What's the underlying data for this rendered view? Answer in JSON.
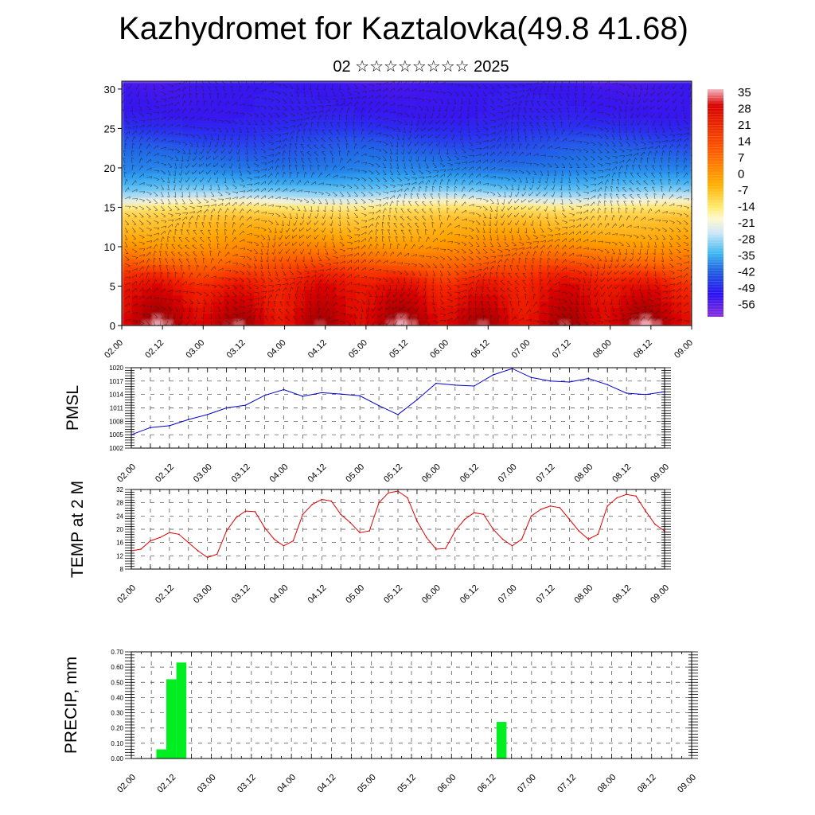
{
  "title": "Kazhydromet for Kaztalovka(49.8 41.68)",
  "subtitle": "02 ☆☆☆☆☆☆☆☆ 2025",
  "time_ticks": [
    "02.00",
    "02.12",
    "03.00",
    "03.12",
    "04.00",
    "04.12",
    "05.00",
    "05.12",
    "06.00",
    "06.12",
    "07.00",
    "07.12",
    "08.00",
    "08.12",
    "09.00"
  ],
  "colors": {
    "pmsl_line": "#0000cc",
    "temp_line": "#e00000",
    "precip_bar": "#00ee22",
    "grid": "#444444"
  },
  "chart_data": [
    {
      "type": "heatmap",
      "title": "",
      "xlabel": "",
      "ylabel": "",
      "xlim": [
        0,
        168
      ],
      "ylim": [
        0,
        31
      ],
      "y_ticks": [
        0,
        5,
        10,
        15,
        20,
        25,
        30
      ],
      "colorbar_labels": [
        "35",
        "28",
        "21",
        "14",
        "7",
        "0",
        "-7",
        "-14",
        "-21",
        "-28",
        "-35",
        "-42",
        "-49",
        "-56"
      ],
      "colorbar_range": [
        -63,
        39
      ],
      "overlay": "wind barbs",
      "temperature_profile": [
        {
          "level": 0,
          "value": 32
        },
        {
          "level": 5,
          "value": 24
        },
        {
          "level": 10,
          "value": 10
        },
        {
          "level": 14,
          "value": 0
        },
        {
          "level": 16,
          "value": -14
        },
        {
          "level": 18,
          "value": -28
        },
        {
          "level": 20,
          "value": -38
        },
        {
          "level": 24,
          "value": -46
        },
        {
          "level": 27,
          "value": -54
        },
        {
          "level": 31,
          "value": -56
        }
      ]
    },
    {
      "type": "line",
      "ylabel": "PMSL",
      "ylim": [
        1002,
        1020
      ],
      "y_ticks": [
        "1002",
        "1005",
        "1008",
        "1011",
        "1014",
        "1017",
        "1020"
      ],
      "grid": true,
      "series": [
        {
          "x": [
            0,
            6,
            12,
            18,
            24,
            30,
            36,
            42,
            48,
            54,
            60,
            66,
            72,
            78,
            84,
            90,
            96,
            102,
            108,
            114,
            120,
            126,
            132,
            138,
            144,
            150,
            156,
            162,
            168
          ],
          "values": [
            1005.0,
            1006.6,
            1007.0,
            1008.4,
            1009.5,
            1011.0,
            1011.6,
            1013.8,
            1015.1,
            1013.6,
            1014.4,
            1014.1,
            1013.7,
            1011.5,
            1009.5,
            1012.8,
            1016.5,
            1016.1,
            1015.9,
            1018.4,
            1019.8,
            1017.8,
            1017.0,
            1016.8,
            1017.6,
            1016.2,
            1014.3,
            1014.0,
            1014.6
          ]
        }
      ]
    },
    {
      "type": "line",
      "ylabel": "TEMP at 2 M",
      "ylim": [
        8,
        32
      ],
      "y_ticks": [
        "8",
        "12",
        "16",
        "20",
        "24",
        "28",
        "32"
      ],
      "grid": true,
      "series": [
        {
          "x": [
            0,
            3,
            6,
            9,
            12,
            15,
            18,
            21,
            24,
            27,
            30,
            33,
            36,
            39,
            42,
            45,
            48,
            51,
            54,
            57,
            60,
            63,
            66,
            69,
            72,
            75,
            78,
            81,
            84,
            87,
            90,
            93,
            96,
            99,
            102,
            105,
            108,
            111,
            114,
            117,
            120,
            123,
            126,
            129,
            132,
            135,
            138,
            141,
            144,
            147,
            150,
            153,
            156,
            159,
            162,
            165,
            168
          ],
          "values": [
            13.5,
            14.0,
            16.5,
            17.5,
            19.0,
            18.5,
            16.0,
            13.5,
            11.5,
            12.5,
            19.5,
            23.5,
            25.5,
            25.3,
            20.5,
            17.0,
            15.0,
            16.5,
            24.5,
            27.5,
            29.0,
            28.5,
            24.5,
            22.0,
            19.0,
            19.5,
            28.0,
            31.0,
            31.5,
            29.5,
            22.5,
            17.5,
            14.0,
            14.2,
            19.5,
            23.0,
            25.0,
            24.5,
            20.0,
            17.0,
            15.0,
            17.0,
            24.0,
            26.0,
            27.0,
            26.5,
            23.0,
            19.5,
            17.0,
            18.5,
            27.0,
            29.5,
            30.5,
            30.0,
            25.5,
            21.5,
            19.5
          ]
        }
      ]
    },
    {
      "type": "bar",
      "ylabel": "PRECIP, mm",
      "ylim": [
        0,
        0.7
      ],
      "y_ticks": [
        "0.00",
        "0.10",
        "0.20",
        "0.30",
        "0.40",
        "0.50",
        "0.60",
        "0.70"
      ],
      "grid": true,
      "bar_width_hours": 3,
      "x": [
        9,
        12,
        15,
        111
      ],
      "values": [
        0.06,
        0.52,
        0.63,
        0.24
      ]
    }
  ]
}
